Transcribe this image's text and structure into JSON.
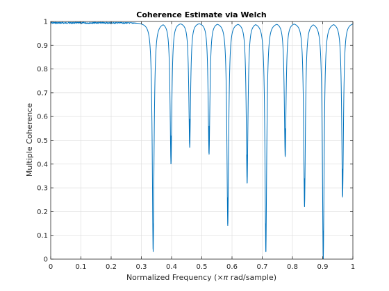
{
  "chart_data": {
    "type": "line",
    "title": "Coherence Estimate via Welch",
    "xlabel_prefix": "Normalized Frequency  (×",
    "xlabel_pi": "π",
    "xlabel_suffix": " rad/sample)",
    "ylabel": "Multiple Coherence",
    "xlim": [
      0,
      1
    ],
    "ylim": [
      0,
      1
    ],
    "xticks": [
      0,
      0.1,
      0.2,
      0.3,
      0.4,
      0.5,
      0.6,
      0.7,
      0.8,
      0.9,
      1
    ],
    "xtick_labels": [
      "0",
      "0.1",
      "0.2",
      "0.3",
      "0.4",
      "0.5",
      "0.6",
      "0.7",
      "0.8",
      "0.9",
      "1"
    ],
    "yticks": [
      0,
      0.1,
      0.2,
      0.3,
      0.4,
      0.5,
      0.6,
      0.7,
      0.8,
      0.9,
      1
    ],
    "ytick_labels": [
      "0",
      "0.1",
      "0.2",
      "0.3",
      "0.4",
      "0.5",
      "0.6",
      "0.7",
      "0.8",
      "0.9",
      "1"
    ],
    "grid": true,
    "line_color": "#0072bd",
    "baseline": 0.997,
    "dips": [
      {
        "x": 0.339,
        "min": 0.03
      },
      {
        "x": 0.398,
        "min": 0.4
      },
      {
        "x": 0.46,
        "min": 0.47
      },
      {
        "x": 0.524,
        "min": 0.44
      },
      {
        "x": 0.586,
        "min": 0.14
      },
      {
        "x": 0.65,
        "min": 0.32
      },
      {
        "x": 0.712,
        "min": 0.03
      },
      {
        "x": 0.776,
        "min": 0.43
      },
      {
        "x": 0.84,
        "min": 0.22
      },
      {
        "x": 0.902,
        "min": 0.0
      },
      {
        "x": 0.966,
        "min": 0.26
      }
    ]
  }
}
